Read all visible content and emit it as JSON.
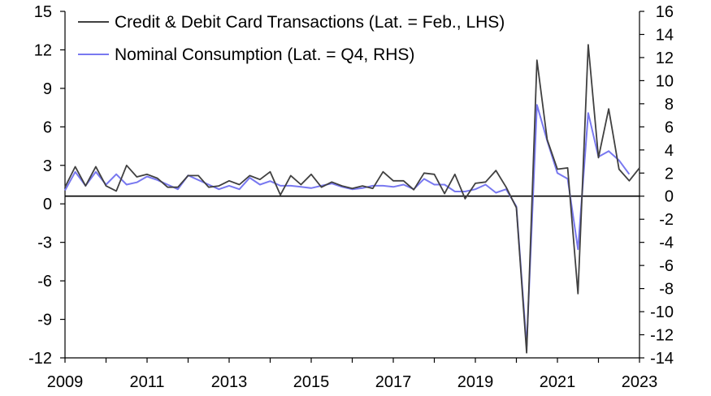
{
  "chart_data": {
    "type": "line",
    "title": "",
    "xlabel": "",
    "ylabel_left": "",
    "ylabel_right": "",
    "x_range": [
      2009,
      2023
    ],
    "x_ticks": [
      "2009",
      "2011",
      "2013",
      "2015",
      "2017",
      "2019",
      "2021",
      "2023"
    ],
    "left_axis": {
      "ylim": [
        -12,
        15
      ],
      "ticks": [
        "15",
        "12",
        "9",
        "6",
        "3",
        "0",
        "-3",
        "-6",
        "-9",
        "-12"
      ]
    },
    "right_axis": {
      "ylim": [
        -14,
        16
      ],
      "ticks": [
        "16",
        "14",
        "12",
        "10",
        "8",
        "6",
        "4",
        "2",
        "0",
        "-2",
        "-4",
        "-6",
        "-8",
        "-10",
        "-12",
        "-14"
      ]
    },
    "legend_position": "top-left",
    "zero_line": true,
    "series": [
      {
        "name": "Credit & Debit Card Transactions (Lat. = Feb., LHS)",
        "axis": "left",
        "color": "#404040",
        "points": [
          [
            2009.0,
            1.3
          ],
          [
            2009.25,
            2.9
          ],
          [
            2009.5,
            1.4
          ],
          [
            2009.75,
            2.9
          ],
          [
            2010.0,
            1.4
          ],
          [
            2010.25,
            1.0
          ],
          [
            2010.5,
            3.0
          ],
          [
            2010.75,
            2.1
          ],
          [
            2011.0,
            2.3
          ],
          [
            2011.25,
            2.0
          ],
          [
            2011.5,
            1.3
          ],
          [
            2011.75,
            1.3
          ],
          [
            2012.0,
            2.2
          ],
          [
            2012.25,
            2.2
          ],
          [
            2012.5,
            1.3
          ],
          [
            2012.75,
            1.4
          ],
          [
            2013.0,
            1.8
          ],
          [
            2013.25,
            1.5
          ],
          [
            2013.5,
            2.2
          ],
          [
            2013.75,
            1.9
          ],
          [
            2014.0,
            2.5
          ],
          [
            2014.25,
            0.7
          ],
          [
            2014.5,
            2.2
          ],
          [
            2014.75,
            1.5
          ],
          [
            2015.0,
            2.3
          ],
          [
            2015.25,
            1.3
          ],
          [
            2015.5,
            1.7
          ],
          [
            2015.75,
            1.4
          ],
          [
            2016.0,
            1.2
          ],
          [
            2016.25,
            1.4
          ],
          [
            2016.5,
            1.2
          ],
          [
            2016.75,
            2.5
          ],
          [
            2017.0,
            1.8
          ],
          [
            2017.25,
            1.8
          ],
          [
            2017.5,
            1.1
          ],
          [
            2017.75,
            2.4
          ],
          [
            2018.0,
            2.3
          ],
          [
            2018.25,
            0.8
          ],
          [
            2018.5,
            2.3
          ],
          [
            2018.75,
            0.4
          ],
          [
            2019.0,
            1.6
          ],
          [
            2019.25,
            1.7
          ],
          [
            2019.5,
            2.6
          ],
          [
            2019.75,
            1.3
          ],
          [
            2020.0,
            -0.3
          ],
          [
            2020.25,
            -11.6
          ],
          [
            2020.5,
            11.2
          ],
          [
            2020.75,
            5.0
          ],
          [
            2021.0,
            2.7
          ],
          [
            2021.25,
            2.8
          ],
          [
            2021.5,
            -7.0
          ],
          [
            2021.75,
            12.4
          ],
          [
            2022.0,
            3.6
          ],
          [
            2022.25,
            7.4
          ],
          [
            2022.5,
            2.7
          ],
          [
            2022.75,
            1.8
          ],
          [
            2023.0,
            2.8
          ]
        ]
      },
      {
        "name": "Nominal Consumption (Lat. = Q4, RHS)",
        "axis": "right",
        "color": "#7878f0",
        "points": [
          [
            2009.0,
            0.5
          ],
          [
            2009.25,
            2.1
          ],
          [
            2009.5,
            0.9
          ],
          [
            2009.75,
            2.1
          ],
          [
            2010.0,
            1.0
          ],
          [
            2010.25,
            1.9
          ],
          [
            2010.5,
            1.0
          ],
          [
            2010.75,
            1.2
          ],
          [
            2011.0,
            1.7
          ],
          [
            2011.25,
            1.4
          ],
          [
            2011.5,
            1.0
          ],
          [
            2011.75,
            0.6
          ],
          [
            2012.0,
            1.8
          ],
          [
            2012.25,
            1.4
          ],
          [
            2012.5,
            1.0
          ],
          [
            2012.75,
            0.6
          ],
          [
            2013.0,
            0.9
          ],
          [
            2013.25,
            0.6
          ],
          [
            2013.5,
            1.6
          ],
          [
            2013.75,
            1.0
          ],
          [
            2014.0,
            1.3
          ],
          [
            2014.25,
            0.9
          ],
          [
            2014.5,
            0.9
          ],
          [
            2014.75,
            0.8
          ],
          [
            2015.0,
            0.7
          ],
          [
            2015.25,
            0.9
          ],
          [
            2015.5,
            1.1
          ],
          [
            2015.75,
            0.8
          ],
          [
            2016.0,
            0.6
          ],
          [
            2016.25,
            0.7
          ],
          [
            2016.5,
            0.9
          ],
          [
            2016.75,
            0.9
          ],
          [
            2017.0,
            0.8
          ],
          [
            2017.25,
            1.0
          ],
          [
            2017.5,
            0.6
          ],
          [
            2017.75,
            1.5
          ],
          [
            2018.0,
            1.0
          ],
          [
            2018.25,
            1.0
          ],
          [
            2018.5,
            0.4
          ],
          [
            2018.75,
            0.4
          ],
          [
            2019.0,
            0.6
          ],
          [
            2019.25,
            1.0
          ],
          [
            2019.5,
            0.3
          ],
          [
            2019.75,
            0.6
          ],
          [
            2020.0,
            -0.9
          ],
          [
            2020.25,
            -13.0
          ],
          [
            2020.5,
            7.9
          ],
          [
            2020.75,
            4.8
          ],
          [
            2021.0,
            2.0
          ],
          [
            2021.25,
            1.5
          ],
          [
            2021.5,
            -4.6
          ],
          [
            2021.75,
            7.2
          ],
          [
            2022.0,
            3.4
          ],
          [
            2022.25,
            3.9
          ],
          [
            2022.5,
            3.1
          ],
          [
            2022.75,
            1.9
          ]
        ]
      }
    ]
  }
}
